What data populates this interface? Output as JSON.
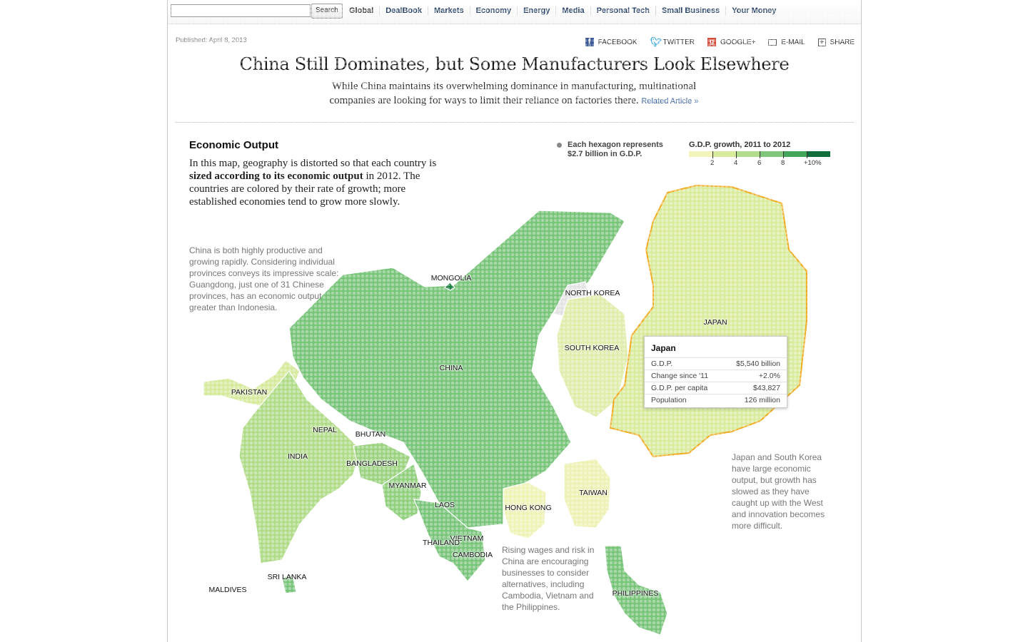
{
  "topbar": {
    "search_placeholder": "",
    "search_button": "Search",
    "nav": [
      "Global",
      "DealBook",
      "Markets",
      "Economy",
      "Energy",
      "Media",
      "Personal Tech",
      "Small Business",
      "Your Money"
    ]
  },
  "article": {
    "published": "Published: April 8, 2013",
    "share": {
      "facebook": "FACEBOOK",
      "twitter": "TWITTER",
      "google": "GOOGLE+",
      "email": "E-MAIL",
      "share": "SHARE"
    },
    "headline": "China Still Dominates, but Some Manufacturers Look Elsewhere",
    "dek": "While China maintains its overwhelming dominance in manufacturing, multinational companies are looking for ways to limit their reliance on factories there.",
    "related": "Related Article »"
  },
  "graphic": {
    "section_title": "Economic Output",
    "intro_pre": "In this map, geography is distorted so that each country is ",
    "intro_bold": "sized according to its economic output",
    "intro_post": " in 2012. The countries are colored by their rate of growth; more established economies tend to grow more slowly.",
    "note_china": "China is both highly productive and growing rapidly. Considering individual provinces conveys its impressive scale: Guangdong, just one of 31 Chinese provinces, has an economic output greater than Indonesia.",
    "note_japan": "Japan and South Korea have large economic output, but growth has slowed as they have caught up with the West and innovation becomes more difficult.",
    "note_wages": "Rising wages and risk in China are encouraging businesses to consider alternatives, including Cambodia, Vietnam and the Philippines.",
    "hex_key": "Each hexagon represents $2.7 billion in G.D.P.",
    "legend": {
      "title": "G.D.P. growth, 2011 to 2012",
      "ticks": [
        "2",
        "4",
        "6",
        "8",
        "+10%"
      ],
      "colors": [
        "#f3f4bb",
        "#d7eb9a",
        "#b1dc89",
        "#7ec679",
        "#42a75c",
        "#0f6e3b"
      ]
    },
    "colors": {
      "china": "#78c479",
      "japan": "#d9eb9c",
      "japan_outline": "#f2a81d",
      "korea": "#deedaa",
      "india": "#b0dc88",
      "pakistan": "#d6ea9c",
      "hongkong": "#eef3b6",
      "taiwan": "#eef1b4",
      "mongolia": "#1d8042",
      "seasia": "#78c479"
    },
    "labels": [
      "MONGOLIA",
      "NORTH KOREA",
      "SOUTH KOREA",
      "JAPAN",
      "CHINA",
      "PAKISTAN",
      "NEPAL",
      "BHUTAN",
      "INDIA",
      "BANGLADESH",
      "MYANMAR",
      "LAOS",
      "HONG KONG",
      "TAIWAN",
      "VIETNAM",
      "THAILAND",
      "CAMBODIA",
      "SRI LANKA",
      "MALDIVES",
      "PHILIPPINES"
    ],
    "tooltip": {
      "country": "Japan",
      "rows": [
        {
          "label": "G.D.P.",
          "value": "$5,540 billion"
        },
        {
          "label": "Change since '11",
          "value": "+2.0%"
        },
        {
          "label": "G.D.P. per capita",
          "value": "$43,827"
        },
        {
          "label": "Population",
          "value": "126 million"
        }
      ]
    }
  }
}
